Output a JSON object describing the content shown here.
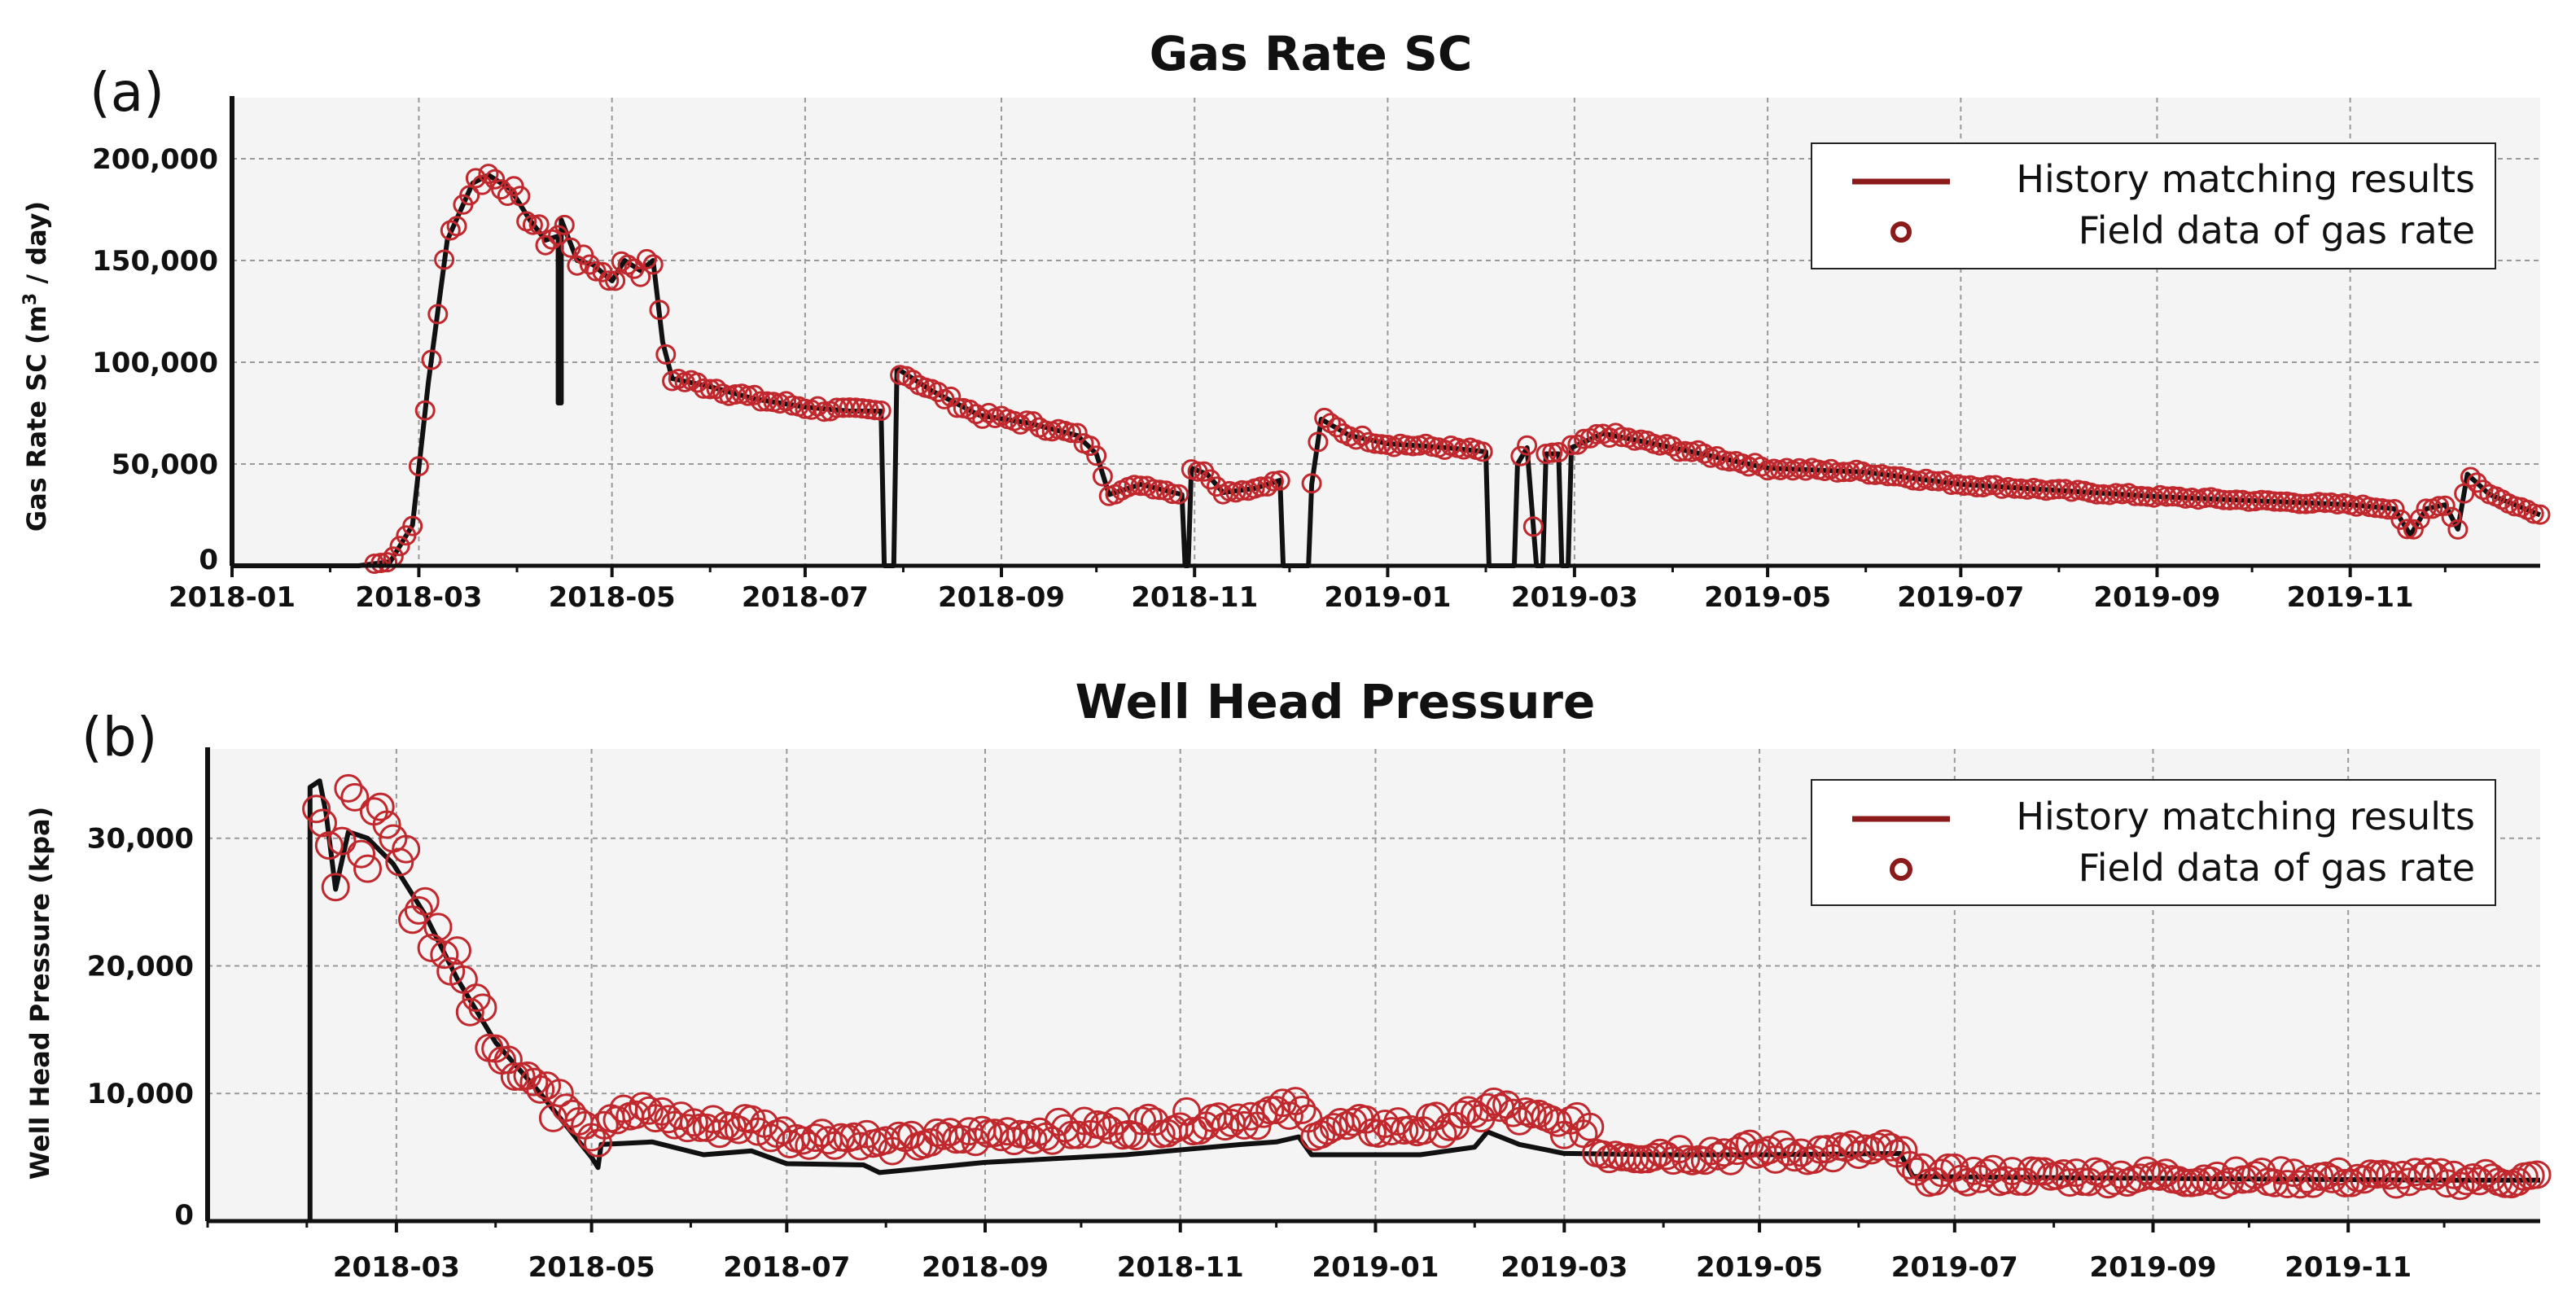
{
  "chart_data": [
    {
      "type": "line",
      "panel_label": "(a)",
      "title": "Gas Rate SC",
      "ylabel_main": "Gas Rate SC (m",
      "ylabel_sup": "3",
      "ylabel_tail": " / day)",
      "xlabel": "",
      "xlim": [
        "2018-01-01",
        "2019-12-31"
      ],
      "ylim": [
        0,
        230000
      ],
      "yticks": [
        0,
        50000,
        100000,
        150000,
        200000
      ],
      "ytick_labels": [
        "0",
        "50,000",
        "100,000",
        "150,000",
        "200,000"
      ],
      "xticks": [
        "2018-01-01",
        "2018-03-01",
        "2018-05-01",
        "2018-07-01",
        "2018-09-01",
        "2018-11-01",
        "2019-01-01",
        "2019-03-01",
        "2019-05-01",
        "2019-07-01",
        "2019-09-01",
        "2019-11-01"
      ],
      "xtick_labels": [
        "2018-01",
        "2018-03",
        "2018-05",
        "2018-07",
        "2018-09",
        "2018-11",
        "2019-01",
        "2019-03",
        "2019-05",
        "2019-07",
        "2019-09",
        "2019-11"
      ],
      "grid": true,
      "legend_position": "top-right",
      "legend": [
        "History matching results",
        "Field data of gas rate"
      ],
      "series": [
        {
          "name": "History matching results",
          "kind": "line",
          "color": "#111111",
          "points": [
            [
              "2018-01-01",
              0
            ],
            [
              "2018-02-10",
              0
            ],
            [
              "2018-02-20",
              2000
            ],
            [
              "2018-02-27",
              20000
            ],
            [
              "2018-03-04",
              90000
            ],
            [
              "2018-03-10",
              160000
            ],
            [
              "2018-03-18",
              188000
            ],
            [
              "2018-03-23",
              192000
            ],
            [
              "2018-03-30",
              185000
            ],
            [
              "2018-04-05",
              170000
            ],
            [
              "2018-04-10",
              160000
            ],
            [
              "2018-04-14",
              162000
            ],
            [
              "2018-04-14",
              80000
            ],
            [
              "2018-04-15",
              80000
            ],
            [
              "2018-04-15",
              170000
            ],
            [
              "2018-04-20",
              150000
            ],
            [
              "2018-04-25",
              148000
            ],
            [
              "2018-05-01",
              140000
            ],
            [
              "2018-05-05",
              150000
            ],
            [
              "2018-05-10",
              145000
            ],
            [
              "2018-05-14",
              150000
            ],
            [
              "2018-05-17",
              110000
            ],
            [
              "2018-05-20",
              92000
            ],
            [
              "2018-06-01",
              88000
            ],
            [
              "2018-06-15",
              82000
            ],
            [
              "2018-07-01",
              78000
            ],
            [
              "2018-07-15",
              76000
            ],
            [
              "2018-07-25",
              76000
            ],
            [
              "2018-07-26",
              0
            ],
            [
              "2018-07-29",
              0
            ],
            [
              "2018-07-30",
              97000
            ],
            [
              "2018-08-10",
              86000
            ],
            [
              "2018-08-25",
              74000
            ],
            [
              "2018-09-10",
              70000
            ],
            [
              "2018-09-25",
              64000
            ],
            [
              "2018-10-01",
              55000
            ],
            [
              "2018-10-05",
              35000
            ],
            [
              "2018-10-15",
              40000
            ],
            [
              "2018-10-28",
              35000
            ],
            [
              "2018-10-29",
              0
            ],
            [
              "2018-10-30",
              0
            ],
            [
              "2018-10-31",
              48000
            ],
            [
              "2018-11-05",
              45000
            ],
            [
              "2018-11-10",
              36000
            ],
            [
              "2018-11-20",
              38000
            ],
            [
              "2018-11-28",
              42000
            ],
            [
              "2018-11-29",
              0
            ],
            [
              "2018-12-07",
              0
            ],
            [
              "2018-12-08",
              40000
            ],
            [
              "2018-12-11",
              72000
            ],
            [
              "2018-12-20",
              64000
            ],
            [
              "2019-01-01",
              60000
            ],
            [
              "2019-01-20",
              58000
            ],
            [
              "2019-02-01",
              56000
            ],
            [
              "2019-02-02",
              0
            ],
            [
              "2019-02-10",
              0
            ],
            [
              "2019-02-11",
              50000
            ],
            [
              "2019-02-14",
              58000
            ],
            [
              "2019-02-17",
              0
            ],
            [
              "2019-02-19",
              0
            ],
            [
              "2019-02-20",
              55000
            ],
            [
              "2019-02-24",
              55000
            ],
            [
              "2019-02-25",
              0
            ],
            [
              "2019-02-27",
              0
            ],
            [
              "2019-02-28",
              58000
            ],
            [
              "2019-03-10",
              65000
            ],
            [
              "2019-04-01",
              58000
            ],
            [
              "2019-05-01",
              48000
            ],
            [
              "2019-06-01",
              46000
            ],
            [
              "2019-07-01",
              40000
            ],
            [
              "2019-08-01",
              37000
            ],
            [
              "2019-09-01",
              34000
            ],
            [
              "2019-10-01",
              32000
            ],
            [
              "2019-11-01",
              30000
            ],
            [
              "2019-11-15",
              28000
            ],
            [
              "2019-11-20",
              15000
            ],
            [
              "2019-11-25",
              28000
            ],
            [
              "2019-12-01",
              30000
            ],
            [
              "2019-12-05",
              18000
            ],
            [
              "2019-12-08",
              45000
            ],
            [
              "2019-12-15",
              35000
            ],
            [
              "2019-12-31",
              25000
            ]
          ]
        },
        {
          "name": "Field data of gas rate",
          "kind": "markers",
          "color": "#c0282d"
        }
      ]
    },
    {
      "type": "line",
      "panel_label": "(b)",
      "title": "Well Head Pressure",
      "ylabel_main": "Well Head Pressure (kpa)",
      "xlabel": "",
      "xlim": [
        "2018-01-01",
        "2019-12-31"
      ],
      "ylim": [
        0,
        37000
      ],
      "yticks": [
        0,
        10000,
        20000,
        30000
      ],
      "ytick_labels": [
        "0",
        "10,000",
        "20,000",
        "30,000"
      ],
      "xticks": [
        "2018-03-01",
        "2018-05-01",
        "2018-07-01",
        "2018-09-01",
        "2018-11-01",
        "2019-01-01",
        "2019-03-01",
        "2019-05-01",
        "2019-07-01",
        "2019-09-01",
        "2019-11-01"
      ],
      "xtick_labels": [
        "2018-03",
        "2018-05",
        "2018-07",
        "2018-09",
        "2018-11",
        "2019-01",
        "2019-03",
        "2019-05",
        "2019-07",
        "2019-09",
        "2019-11"
      ],
      "grid": true,
      "legend_position": "top-right",
      "legend": [
        "History matching results",
        "Field data of gas rate"
      ],
      "series": [
        {
          "name": "History matching results",
          "kind": "line",
          "color": "#111111",
          "points": [
            [
              "2018-02-02",
              0
            ],
            [
              "2018-02-02",
              34000
            ],
            [
              "2018-02-05",
              34500
            ],
            [
              "2018-02-07",
              32000
            ],
            [
              "2018-02-10",
              26000
            ],
            [
              "2018-02-14",
              30500
            ],
            [
              "2018-02-20",
              30000
            ],
            [
              "2018-02-28",
              28000
            ],
            [
              "2018-03-10",
              24000
            ],
            [
              "2018-03-20",
              19000
            ],
            [
              "2018-04-01",
              14000
            ],
            [
              "2018-04-15",
              10000
            ],
            [
              "2018-05-01",
              5000
            ],
            [
              "2018-05-03",
              4200
            ],
            [
              "2018-05-04",
              6000
            ],
            [
              "2018-05-20",
              6200
            ],
            [
              "2018-06-05",
              5200
            ],
            [
              "2018-06-20",
              5500
            ],
            [
              "2018-07-01",
              4500
            ],
            [
              "2018-07-25",
              4400
            ],
            [
              "2018-07-30",
              3800
            ],
            [
              "2018-09-01",
              4600
            ],
            [
              "2018-10-15",
              5200
            ],
            [
              "2018-11-20",
              6000
            ],
            [
              "2018-12-01",
              6200
            ],
            [
              "2018-12-08",
              6600
            ],
            [
              "2018-12-12",
              5200
            ],
            [
              "2019-01-15",
              5200
            ],
            [
              "2019-02-01",
              5800
            ],
            [
              "2019-02-05",
              7000
            ],
            [
              "2019-02-15",
              6000
            ],
            [
              "2019-03-01",
              5300
            ],
            [
              "2019-04-01",
              5200
            ],
            [
              "2019-05-01",
              5200
            ],
            [
              "2019-06-14",
              5300
            ],
            [
              "2019-06-18",
              3500
            ],
            [
              "2019-08-01",
              3400
            ],
            [
              "2019-10-01",
              3300
            ],
            [
              "2019-12-01",
              3200
            ],
            [
              "2019-12-31",
              3200
            ]
          ]
        },
        {
          "name": "Field data of gas rate",
          "kind": "markers",
          "color": "#c0282d"
        }
      ]
    }
  ],
  "legend_line_color": "#8b1a1a",
  "legend_marker_color": "#8b1a1a",
  "marker_color": "#c0282d"
}
